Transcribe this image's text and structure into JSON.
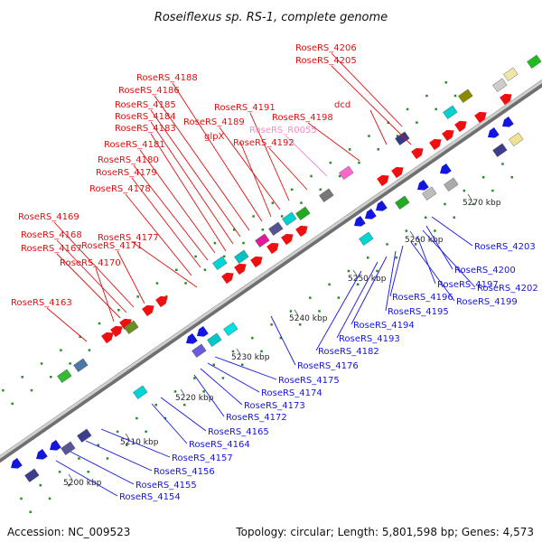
{
  "title": "Roseiflexus sp. RS-1, complete genome",
  "footer": {
    "accession": "Accession: NC_009523",
    "topology": "Topology: circular; Length: 5,801,598 bp; Genes: 4,573"
  },
  "colors": {
    "forward_label": "#e01010",
    "reverse_label": "#1515e0",
    "rna_label": "#ff88cc",
    "backbone": "#999999",
    "tick": "#2a8a2a"
  },
  "scale_labels": [
    "5200 kbp",
    "5210 kbp",
    "5220 kbp",
    "5230 kbp",
    "5240 kbp",
    "5250 kbp",
    "5260 kbp",
    "5270 kbp"
  ],
  "labels_upper": [
    "RoseRS_4206",
    "RoseRS_4205",
    "RoseRS_4188",
    "RoseRS_4186",
    "RoseRS_4185",
    "RoseRS_4184",
    "RoseRS_4183",
    "RoseRS_4191",
    "RoseRS_4189",
    "glpX",
    "RoseRS_R0055",
    "dcd",
    "RoseRS_4198",
    "RoseRS_4192",
    "RoseRS_4181",
    "RoseRS_4180",
    "RoseRS_4179",
    "RoseRS_4178",
    "RoseRS_4169",
    "RoseRS_4168",
    "RoseRS_4167",
    "RoseRS_4177",
    "RoseRS_4171",
    "RoseRS_4170",
    "RoseRS_4163"
  ],
  "labels_lower": [
    "RoseRS_4203",
    "RoseRS_4200",
    "RoseRS_4202",
    "RoseRS_4197",
    "RoseRS_4199",
    "RoseRS_4196",
    "RoseRS_4195",
    "RoseRS_4194",
    "RoseRS_4193",
    "RoseRS_4182",
    "RoseRS_4176",
    "RoseRS_4175",
    "RoseRS_4174",
    "RoseRS_4173",
    "RoseRS_4172",
    "RoseRS_4165",
    "RoseRS_4164",
    "RoseRS_4157",
    "RoseRS_4156",
    "RoseRS_4155",
    "RoseRS_4154"
  ]
}
